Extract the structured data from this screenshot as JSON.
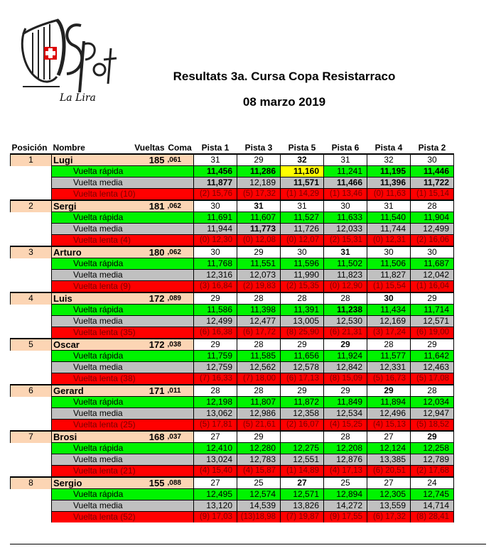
{
  "logo": {
    "text": "La Lira"
  },
  "title": "Resultats 3a. Cursa Copa Resistarraco",
  "date": "08 marzo 2019",
  "headers": {
    "pos": "Posición",
    "name": "Nombre",
    "laps": "Vueltas",
    "coma": "Coma",
    "tracks": [
      "Pista 1",
      "Pista 3",
      "Pista 5",
      "Pista 6",
      "Pista 4",
      "Pista 2"
    ]
  },
  "row_labels": {
    "fast": "Vuelta rápida",
    "medium": "Vuelta media"
  },
  "drivers": [
    {
      "pos": "1",
      "name": "Lugi",
      "laps": "185",
      "coma": ",061",
      "track_laps": [
        "31",
        "29",
        "32",
        "31",
        "32",
        "30"
      ],
      "lap_bold": [
        false,
        false,
        true,
        false,
        false,
        false
      ],
      "fast": [
        "11,456",
        "11,286",
        "11,160",
        "11,241",
        "11,195",
        "11,446"
      ],
      "fast_bold": [
        true,
        true,
        true,
        false,
        true,
        true
      ],
      "medium": [
        "11,877",
        "12,189",
        "11,571",
        "11,466",
        "11,396",
        "11,722"
      ],
      "medium_bold": [
        true,
        false,
        true,
        true,
        true,
        true
      ],
      "slow_label": "Vuelta   lenta  (10)",
      "slow": [
        "(2) 15,76",
        "(5) 17,32",
        "(1) 14,29",
        "(1) 13,46",
        "(0) 11,63",
        "(1) 15,14"
      ]
    },
    {
      "pos": "2",
      "name": "Sergi",
      "laps": "181",
      "coma": ",062",
      "track_laps": [
        "30",
        "31",
        "31",
        "30",
        "31",
        "28"
      ],
      "lap_bold": [
        false,
        true,
        false,
        false,
        false,
        false
      ],
      "fast": [
        "11,691",
        "11,607",
        "11,527",
        "11,633",
        "11,540",
        "11,904"
      ],
      "fast_bold": [
        false,
        false,
        false,
        false,
        false,
        false
      ],
      "medium": [
        "11,944",
        "11,773",
        "11,726",
        "12,033",
        "11,744",
        "12,499"
      ],
      "medium_bold": [
        false,
        true,
        false,
        false,
        false,
        false
      ],
      "slow_label": "Vuelta   lenta  (4)",
      "slow": [
        "(0) 12,30",
        "(0) 12,08",
        "(0) 12,07",
        "(2) 15,31",
        "(0) 12,31",
        "(2) 16,06"
      ]
    },
    {
      "pos": "3",
      "name": "Arturo",
      "laps": "180",
      "coma": ",062",
      "track_laps": [
        "30",
        "29",
        "30",
        "31",
        "30",
        "30"
      ],
      "lap_bold": [
        false,
        false,
        false,
        true,
        false,
        false
      ],
      "fast": [
        "11,768",
        "11,551",
        "11,596",
        "11,502",
        "11,506",
        "11,687"
      ],
      "fast_bold": [
        false,
        false,
        false,
        false,
        false,
        false
      ],
      "medium": [
        "12,316",
        "12,073",
        "11,990",
        "11,823",
        "11,827",
        "12,042"
      ],
      "medium_bold": [
        false,
        false,
        false,
        false,
        false,
        false
      ],
      "slow_label": "Vuelta   lenta  (9)",
      "slow": [
        "(3) 16,84",
        "(2) 19,83",
        "(2) 15,35",
        "(0) 12,90",
        "(1) 15,54",
        "(1) 16,04"
      ]
    },
    {
      "pos": "4",
      "name": "Luis",
      "laps": "172",
      "coma": ",089",
      "track_laps": [
        "29",
        "28",
        "28",
        "28",
        "30",
        "29"
      ],
      "lap_bold": [
        false,
        false,
        false,
        false,
        true,
        false
      ],
      "fast": [
        "11,586",
        "11,398",
        "11,391",
        "11,238",
        "11,434",
        "11,714"
      ],
      "fast_bold": [
        false,
        false,
        false,
        true,
        false,
        false
      ],
      "medium": [
        "12,499",
        "12,477",
        "13,005",
        "12,530",
        "12,169",
        "12,571"
      ],
      "medium_bold": [
        false,
        false,
        false,
        false,
        false,
        false
      ],
      "slow_label": "Vuelta   lenta  (35)",
      "slow": [
        "(6) 16,38",
        "(6) 17,72",
        "(8) 25,90",
        "(6) 21,31",
        "(3) 17,24",
        "(6) 19,00"
      ]
    },
    {
      "pos": "5",
      "name": "Oscar",
      "laps": "172",
      "coma": ",038",
      "track_laps": [
        "29",
        "28",
        "29",
        "29",
        "28",
        "29"
      ],
      "lap_bold": [
        false,
        false,
        false,
        true,
        false,
        false
      ],
      "fast": [
        "11,759",
        "11,585",
        "11,656",
        "11,924",
        "11,577",
        "11,642"
      ],
      "fast_bold": [
        false,
        false,
        false,
        false,
        false,
        false
      ],
      "medium": [
        "12,759",
        "12,562",
        "12,578",
        "12,842",
        "12,331",
        "12,463"
      ],
      "medium_bold": [
        false,
        false,
        false,
        false,
        false,
        false
      ],
      "slow_label": "Vuelta   lenta  (38)",
      "slow": [
        "(7) 16,33",
        "(7) 18,00",
        "(6) 17,13",
        "(8) 15,09",
        "(5) 16,73",
        "(5) 17,08"
      ]
    },
    {
      "pos": "6",
      "name": "Gerard",
      "laps": "171",
      "coma": ",011",
      "track_laps": [
        "28",
        "28",
        "29",
        "29",
        "29",
        "28"
      ],
      "lap_bold": [
        false,
        false,
        false,
        false,
        true,
        false
      ],
      "fast": [
        "12,198",
        "11,807",
        "11,872",
        "11,849",
        "11,894",
        "12,034"
      ],
      "fast_bold": [
        false,
        false,
        false,
        false,
        false,
        false
      ],
      "medium": [
        "13,062",
        "12,986",
        "12,358",
        "12,534",
        "12,496",
        "12,947"
      ],
      "medium_bold": [
        false,
        false,
        false,
        false,
        false,
        false
      ],
      "slow_label": "Vuelta   lenta  (25)",
      "slow": [
        "(5) 17,81",
        "(5) 21,61",
        "(2) 16,07",
        "(4) 15,25",
        "(4) 15,13",
        "(5) 18,52"
      ]
    },
    {
      "pos": "7",
      "name": "Brosi",
      "laps": "168",
      "coma": ",037",
      "track_laps": [
        "27",
        "29",
        "",
        "28",
        "27",
        "29"
      ],
      "lap_bold": [
        false,
        false,
        false,
        false,
        false,
        true
      ],
      "fast": [
        "12,410",
        "12,280",
        "12,275",
        "12,208",
        "12,124",
        "12,258"
      ],
      "fast_bold": [
        false,
        false,
        false,
        false,
        false,
        false
      ],
      "medium": [
        "13,024",
        "12,783",
        "12,551",
        "12,876",
        "13,385",
        "12,789"
      ],
      "medium_bold": [
        false,
        false,
        false,
        false,
        false,
        false
      ],
      "slow_label": "Vuelta   lenta  (21)",
      "slow": [
        "(4) 15,40",
        "(4) 15,87",
        "(1) 14,89",
        "(4) 17,13",
        "(6) 20,51",
        "(2) 17,68"
      ]
    },
    {
      "pos": "8",
      "name": "Sergio",
      "laps": "155",
      "coma": ",088",
      "track_laps": [
        "27",
        "25",
        "27",
        "25",
        "27",
        "24"
      ],
      "lap_bold": [
        false,
        false,
        true,
        false,
        false,
        false
      ],
      "fast": [
        "12,495",
        "12,574",
        "12,571",
        "12,894",
        "12,305",
        "12,745"
      ],
      "fast_bold": [
        false,
        false,
        false,
        false,
        false,
        false
      ],
      "medium": [
        "13,120",
        "14,539",
        "13,826",
        "14,272",
        "13,559",
        "14,714"
      ],
      "medium_bold": [
        false,
        false,
        false,
        false,
        false,
        false
      ],
      "slow_label": "Vuelta   lenta  (52)",
      "slow": [
        "(9) 17,03",
        "(13)18,98",
        "(7) 19,87",
        "(9) 17,55",
        "(6) 17,32",
        "(8) 28,41"
      ]
    }
  ],
  "highlight": {
    "driver": 0,
    "row": "fast",
    "col": 2,
    "color": "#ffff00"
  },
  "colors": {
    "driver_row": "#fcd5b4",
    "fast": "#00f400",
    "medium": "#c0c0c0",
    "slow": "#ff0000"
  }
}
